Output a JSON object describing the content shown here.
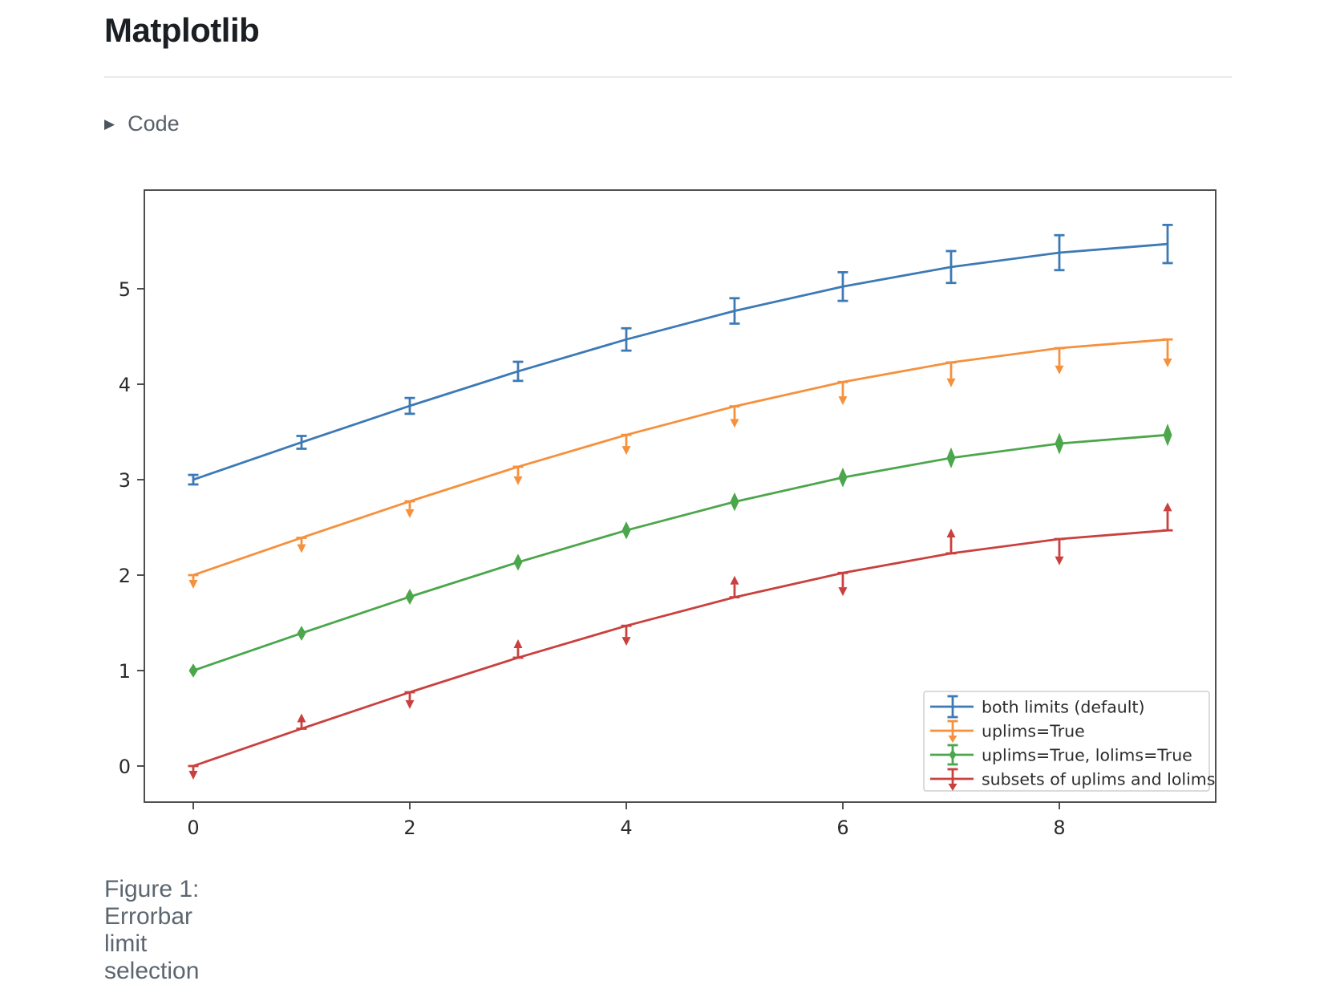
{
  "page": {
    "title": "Matplotlib",
    "code_toggle_label": "Code",
    "disclosure_icon": "▶",
    "figure_caption": "Figure 1: Errorbar limit selection"
  },
  "chart_data": {
    "type": "line",
    "title": "",
    "xlabel": "",
    "ylabel": "",
    "x": [
      0,
      1,
      2,
      3,
      4,
      5,
      6,
      7,
      8,
      9
    ],
    "yerr": [
      0.05,
      0.067,
      0.083,
      0.1,
      0.117,
      0.133,
      0.15,
      0.167,
      0.183,
      0.2
    ],
    "xticks": [
      0,
      2,
      4,
      6,
      8
    ],
    "yticks": [
      0,
      1,
      2,
      3,
      4,
      5
    ],
    "xlim": [
      -0.45,
      9.45
    ],
    "ylim": [
      -0.43,
      6.0
    ],
    "grid": false,
    "legend_position": "lower right",
    "series": [
      {
        "name": "both limits (default)",
        "color": "#3d7ab5",
        "limit_style": "both_caps",
        "values": [
          3.0,
          3.391,
          3.773,
          4.135,
          4.469,
          4.768,
          5.023,
          5.228,
          5.378,
          5.469
        ]
      },
      {
        "name": "uplims=True",
        "color": "#f5913d",
        "limit_style": "uplims",
        "values": [
          2.0,
          2.391,
          2.773,
          3.135,
          3.469,
          3.768,
          4.023,
          4.228,
          4.378,
          4.469
        ]
      },
      {
        "name": "uplims=True, lolims=True",
        "color": "#4ca64c",
        "limit_style": "uplims_lolims",
        "values": [
          1.0,
          1.391,
          1.773,
          2.135,
          2.469,
          2.768,
          3.023,
          3.228,
          3.378,
          3.469
        ]
      },
      {
        "name": "subsets of uplims and lolims",
        "color": "#c9413f",
        "limit_style": "alternating",
        "arrow_pattern": [
          "down",
          "up",
          "down",
          "up",
          "down",
          "up",
          "down",
          "up",
          "down",
          "up"
        ],
        "values": [
          0.0,
          0.391,
          0.773,
          1.135,
          1.469,
          1.768,
          2.023,
          2.228,
          2.378,
          2.469
        ]
      }
    ],
    "frame_color": "#3d3d3d",
    "legend_border_color": "#cfcfcf"
  }
}
